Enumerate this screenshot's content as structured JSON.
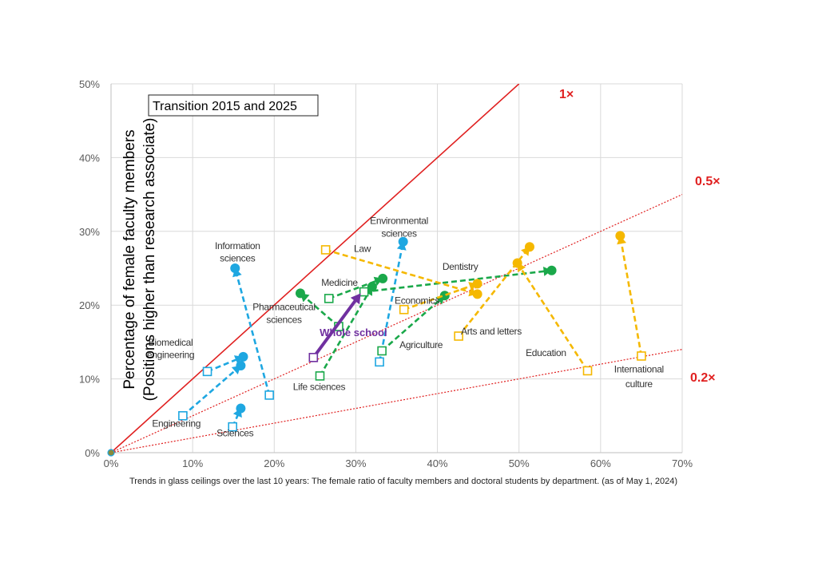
{
  "chart_data": {
    "type": "scatter",
    "title": "Transition 2015 and 2025",
    "ylabel_line1": "Percentage of female faculty members",
    "ylabel_line2": "(Positions higher than research associate)",
    "xlabel": "",
    "xlim": [
      0,
      70
    ],
    "ylim": [
      0,
      50
    ],
    "x_ticks": [
      0,
      10,
      20,
      30,
      40,
      50,
      60,
      70
    ],
    "y_ticks": [
      0,
      10,
      20,
      30,
      40,
      50
    ],
    "x_tick_labels": [
      "0%",
      "10%",
      "20%",
      "30%",
      "40%",
      "50%",
      "60%",
      "70%"
    ],
    "y_tick_labels": [
      "0%",
      "10%",
      "20%",
      "30%",
      "40%",
      "50%"
    ],
    "grid": true,
    "reference_lines": [
      {
        "label": "1×",
        "slope": 1.0,
        "style": "solid",
        "color": "#e02020"
      },
      {
        "label": "0.5×",
        "slope": 0.5,
        "style": "dotted",
        "color": "#e02020"
      },
      {
        "label": "0.2×",
        "slope": 0.2,
        "style": "dotted",
        "color": "#e02020"
      }
    ],
    "colors": {
      "blue": "#1ea7e1",
      "green": "#1aa84a",
      "orange": "#f5b800",
      "purple": "#7030a0",
      "ref": "#e02020"
    },
    "series": [
      {
        "name": "Information sciences",
        "color": "blue",
        "from": [
          19.4,
          7.8
        ],
        "to": [
          15.2,
          25.0
        ],
        "bend": [
          0,
          0
        ]
      },
      {
        "name": "Biomedical engineering",
        "color": "blue",
        "from": [
          11.8,
          11.0
        ],
        "to": [
          16.2,
          13.0
        ],
        "bend": [
          0,
          0
        ]
      },
      {
        "name": "Engineering",
        "color": "blue",
        "from": [
          8.8,
          5.0
        ],
        "to": [
          15.9,
          11.8
        ],
        "bend": [
          0,
          0
        ]
      },
      {
        "name": "Sciences",
        "color": "blue",
        "from": [
          14.9,
          3.5
        ],
        "to": [
          15.9,
          6.0
        ],
        "bend": [
          0,
          0
        ]
      },
      {
        "name": "Environmental sciences",
        "color": "blue",
        "from": [
          32.9,
          12.3
        ],
        "to": [
          35.8,
          28.6
        ],
        "bend": [
          0,
          0
        ]
      },
      {
        "name": "Pharmaceutical sciences",
        "color": "green",
        "from": [
          27.9,
          17.1
        ],
        "to": [
          23.2,
          21.6
        ],
        "bend": [
          0,
          0
        ]
      },
      {
        "name": "Medicine",
        "color": "green",
        "from": [
          26.7,
          20.9
        ],
        "to": [
          33.3,
          23.6
        ],
        "bend": [
          0,
          0
        ]
      },
      {
        "name": "Life sciences",
        "color": "green",
        "from": [
          25.6,
          10.4
        ],
        "to": [
          32.0,
          22.5
        ],
        "bend": [
          0,
          0
        ]
      },
      {
        "name": "Agriculture",
        "color": "green",
        "from": [
          33.2,
          13.8
        ],
        "to": [
          40.9,
          21.3
        ],
        "bend": [
          0,
          0
        ]
      },
      {
        "name": "Dentistry",
        "color": "green",
        "from": [
          31.0,
          21.8
        ],
        "to": [
          54.0,
          24.7
        ],
        "bend": [
          0,
          0
        ]
      },
      {
        "name": "Law",
        "color": "orange",
        "from": [
          26.3,
          27.5
        ],
        "to": [
          44.9,
          21.5
        ],
        "bend": [
          0,
          0
        ]
      },
      {
        "name": "Economics",
        "color": "orange",
        "from": [
          35.9,
          19.4
        ],
        "to": [
          44.9,
          22.9
        ],
        "bend": [
          0,
          0
        ]
      },
      {
        "name": "Arts and letters",
        "color": "orange",
        "from": [
          42.6,
          15.8
        ],
        "to": [
          51.3,
          27.9
        ],
        "bend": [
          0,
          0
        ]
      },
      {
        "name": "Education",
        "color": "orange",
        "from": [
          58.4,
          11.1
        ],
        "to": [
          49.8,
          25.7
        ],
        "bend": [
          0,
          0
        ]
      },
      {
        "name": "International culture",
        "color": "orange",
        "from": [
          65.0,
          13.1
        ],
        "to": [
          62.4,
          29.4
        ],
        "bend": [
          0,
          0
        ]
      },
      {
        "name": "Whole school",
        "color": "purple",
        "from": [
          24.8,
          12.9
        ],
        "to": [
          30.6,
          21.6
        ],
        "bend": [
          0,
          0
        ]
      }
    ],
    "point_labels": [
      {
        "text": "Information",
        "x": 15.5,
        "y": 27.6,
        "color": "#333333",
        "bold": false,
        "size": 12
      },
      {
        "text": "sciences",
        "x": 15.5,
        "y": 25.9,
        "color": "#333333",
        "bold": false,
        "size": 12
      },
      {
        "text": "Biomedical",
        "x": 7.3,
        "y": 14.5,
        "color": "#333333",
        "bold": false,
        "size": 12
      },
      {
        "text": "engineering",
        "x": 7.3,
        "y": 12.8,
        "color": "#333333",
        "bold": false,
        "size": 12
      },
      {
        "text": "Engineering",
        "x": 8.0,
        "y": 3.5,
        "color": "#333333",
        "bold": false,
        "size": 12
      },
      {
        "text": "Sciences",
        "x": 15.2,
        "y": 2.2,
        "color": "#333333",
        "bold": false,
        "size": 12
      },
      {
        "text": "Environmental",
        "x": 35.3,
        "y": 31.0,
        "color": "#333333",
        "bold": false,
        "size": 12
      },
      {
        "text": "sciences",
        "x": 35.3,
        "y": 29.3,
        "color": "#333333",
        "bold": false,
        "size": 12
      },
      {
        "text": "Law",
        "x": 30.8,
        "y": 27.2,
        "color": "#333333",
        "bold": false,
        "size": 12
      },
      {
        "text": "Dentistry",
        "x": 42.8,
        "y": 24.8,
        "color": "#333333",
        "bold": false,
        "size": 12
      },
      {
        "text": "Medicine",
        "x": 28.0,
        "y": 22.6,
        "color": "#333333",
        "bold": false,
        "size": 12
      },
      {
        "text": "Pharmaceutical",
        "x": 21.2,
        "y": 19.3,
        "color": "#333333",
        "bold": false,
        "size": 12
      },
      {
        "text": "sciences",
        "x": 21.2,
        "y": 17.6,
        "color": "#333333",
        "bold": false,
        "size": 12
      },
      {
        "text": "Economics",
        "x": 37.5,
        "y": 20.2,
        "color": "#333333",
        "bold": false,
        "size": 12
      },
      {
        "text": "Whole school",
        "x": 29.7,
        "y": 15.8,
        "color": "#7030a0",
        "bold": true,
        "size": 13
      },
      {
        "text": "Arts and letters",
        "x": 46.6,
        "y": 16.0,
        "color": "#333333",
        "bold": false,
        "size": 12
      },
      {
        "text": "Agriculture",
        "x": 38.0,
        "y": 14.2,
        "color": "#333333",
        "bold": false,
        "size": 12
      },
      {
        "text": "Education",
        "x": 53.3,
        "y": 13.1,
        "color": "#333333",
        "bold": false,
        "size": 12
      },
      {
        "text": "Life sciences",
        "x": 25.5,
        "y": 8.5,
        "color": "#333333",
        "bold": false,
        "size": 12
      },
      {
        "text": "International",
        "x": 64.7,
        "y": 10.9,
        "color": "#333333",
        "bold": false,
        "size": 12
      },
      {
        "text": "culture",
        "x": 64.7,
        "y": 8.9,
        "color": "#333333",
        "bold": false,
        "size": 12
      }
    ]
  },
  "caption": "Trends in glass ceilings over the last 10 years: The female ratio of faculty members and doctoral students by department. (as of May 1, 2024)"
}
